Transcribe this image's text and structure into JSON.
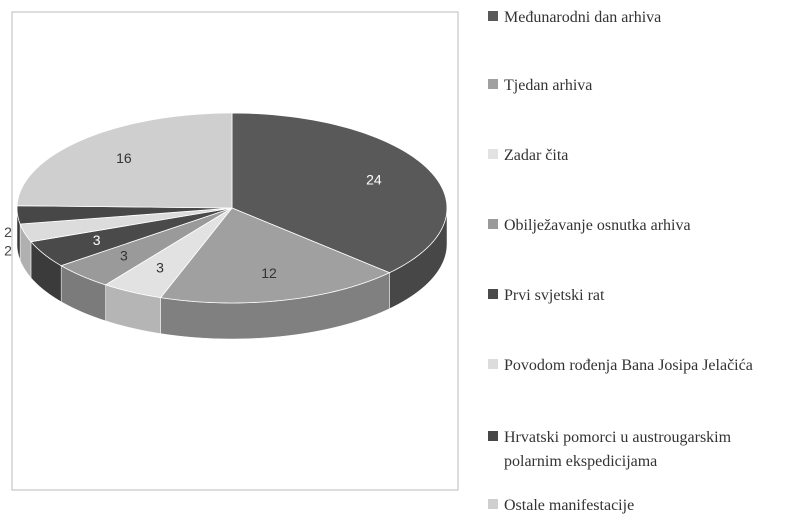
{
  "chart_data": {
    "type": "pie3d",
    "categories": [
      "Međunarodni dan arhiva",
      "Tjedan arhiva",
      "Zadar čita",
      "Obilježavanje osnutka arhiva",
      "Prvi svjetski rat",
      "Povodom rođenja Bana Josipa Jelačića",
      "Hrvatski pomorci u austrougarskim polarnim ekspedicijama",
      "Ostale manifestacije"
    ],
    "values": [
      24,
      12,
      3,
      3,
      3,
      2,
      2,
      16
    ],
    "colors": [
      "#595959",
      "#a0a0a0",
      "#e2e2e2",
      "#9a9a9a",
      "#4a4a4a",
      "#dcdcdc",
      "#474747",
      "#cfcfcf"
    ]
  }
}
